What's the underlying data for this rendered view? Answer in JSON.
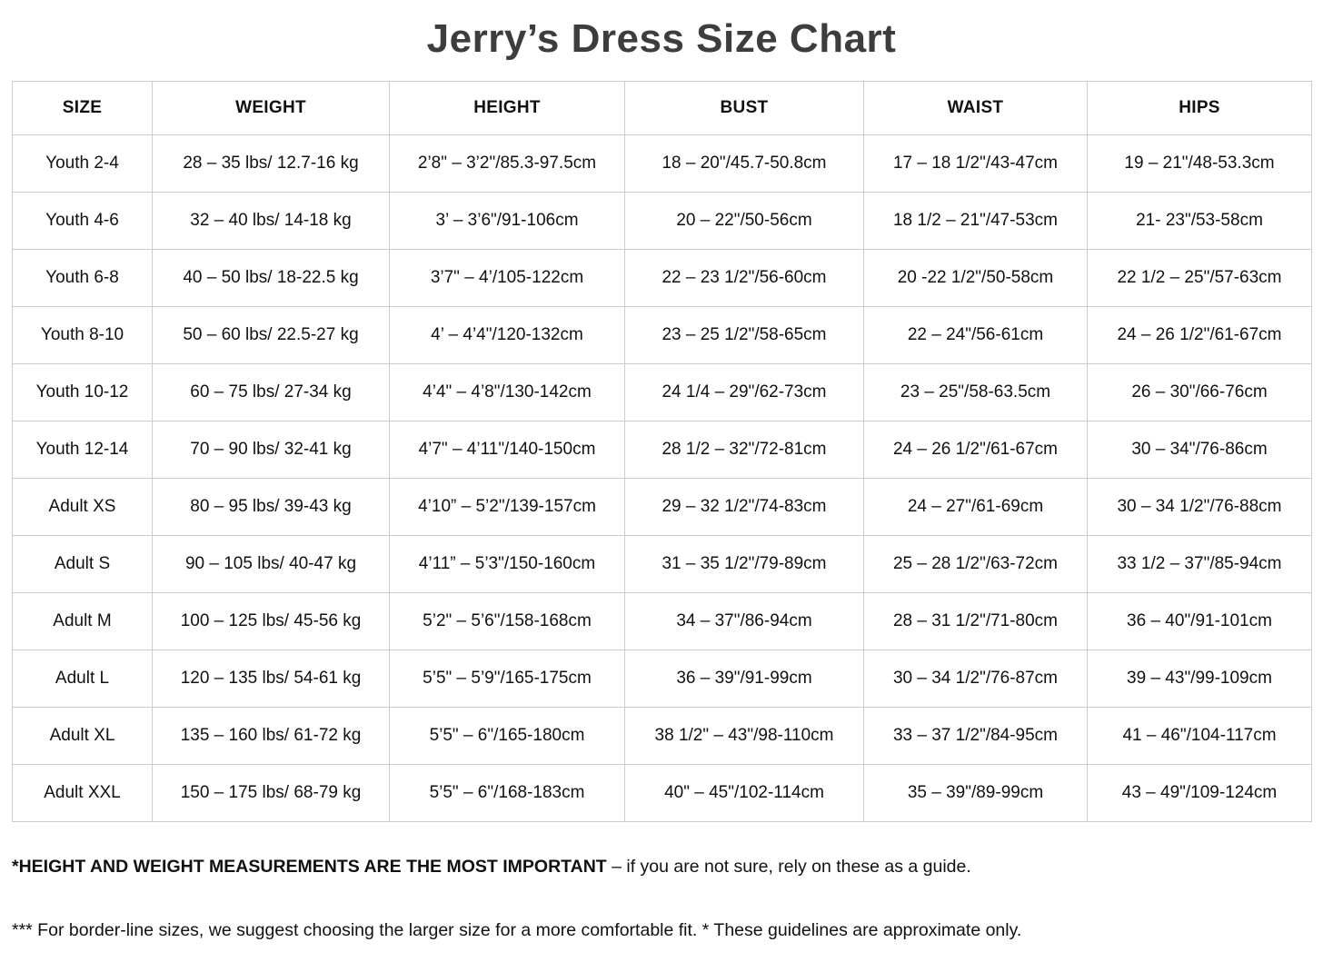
{
  "title": "Jerry’s Dress Size Chart",
  "table": {
    "headers": [
      "SIZE",
      "WEIGHT",
      "HEIGHT",
      "BUST",
      "WAIST",
      "HIPS"
    ],
    "rows": [
      [
        "Youth 2-4",
        "28 – 35 lbs/ 12.7-16 kg",
        "2’8\" – 3’2\"/85.3-97.5cm",
        "18 – 20\"/45.7-50.8cm",
        "17 – 18 1/2\"/43-47cm",
        "19 – 21\"/48-53.3cm"
      ],
      [
        "Youth 4-6",
        "32 – 40 lbs/ 14-18 kg",
        "3’ – 3’6\"/91-106cm",
        "20 – 22\"/50-56cm",
        "18 1/2 – 21\"/47-53cm",
        "21- 23\"/53-58cm"
      ],
      [
        "Youth 6-8",
        "40 – 50 lbs/ 18-22.5 kg",
        "3’7\" – 4’/105-122cm",
        "22 – 23 1/2\"/56-60cm",
        "20 -22 1/2\"/50-58cm",
        "22 1/2 – 25\"/57-63cm"
      ],
      [
        "Youth 8-10",
        "50 – 60 lbs/ 22.5-27 kg",
        "4’ – 4’4\"/120-132cm",
        "23 – 25 1/2\"/58-65cm",
        "22 – 24\"/56-61cm",
        "24 – 26 1/2\"/61-67cm"
      ],
      [
        "Youth 10-12",
        "60 – 75 lbs/ 27-34 kg",
        "4’4\" – 4’8\"/130-142cm",
        "24 1/4 – 29\"/62-73cm",
        "23 – 25\"/58-63.5cm",
        "26 – 30\"/66-76cm"
      ],
      [
        "Youth 12-14",
        "70 – 90 lbs/ 32-41 kg",
        "4’7\" – 4’11\"/140-150cm",
        "28 1/2 – 32\"/72-81cm",
        "24 – 26 1/2\"/61-67cm",
        "30 – 34\"/76-86cm"
      ],
      [
        "Adult XS",
        "80 – 95 lbs/ 39-43 kg",
        "4’10” – 5’2\"/139-157cm",
        "29 – 32 1/2\"/74-83cm",
        "24 – 27\"/61-69cm",
        "30 – 34 1/2\"/76-88cm"
      ],
      [
        "Adult S",
        "90 – 105 lbs/ 40-47 kg",
        "4’11” – 5’3\"/150-160cm",
        "31 – 35 1/2\"/79-89cm",
        "25 – 28 1/2\"/63-72cm",
        "33 1/2 – 37\"/85-94cm"
      ],
      [
        "Adult M",
        "100 – 125 lbs/ 45-56 kg",
        "5’2\" – 5’6\"/158-168cm",
        "34 – 37\"/86-94cm",
        "28 – 31 1/2\"/71-80cm",
        "36 – 40\"/91-101cm"
      ],
      [
        "Adult L",
        "120 – 135 lbs/ 54-61 kg",
        "5’5\" – 5’9\"/165-175cm",
        "36 – 39\"/91-99cm",
        "30 – 34 1/2\"/76-87cm",
        "39 – 43\"/99-109cm"
      ],
      [
        "Adult XL",
        "135 – 160 lbs/ 61-72 kg",
        "5’5\" – 6\"/165-180cm",
        "38 1/2\" – 43\"/98-110cm",
        "33 – 37 1/2\"/84-95cm",
        "41 – 46\"/104-117cm"
      ],
      [
        "Adult XXL",
        "150 – 175 lbs/ 68-79 kg",
        "5’5\" – 6\"/168-183cm",
        "40\" – 45\"/102-114cm",
        "35 – 39\"/89-99cm",
        "43 – 49\"/109-124cm"
      ]
    ]
  },
  "notes": {
    "primary_bold": "*HEIGHT AND WEIGHT MEASUREMENTS ARE THE MOST IMPORTANT",
    "primary_rest": " – if you are not sure, rely on these as a guide.",
    "secondary": "*** For border-line sizes, we suggest choosing the larger size for a more comfortable fit. * These guidelines are approximate only."
  },
  "colors": {
    "title": "#3d3d3d",
    "text": "#111111",
    "border": "#cccccc",
    "background": "#ffffff"
  }
}
